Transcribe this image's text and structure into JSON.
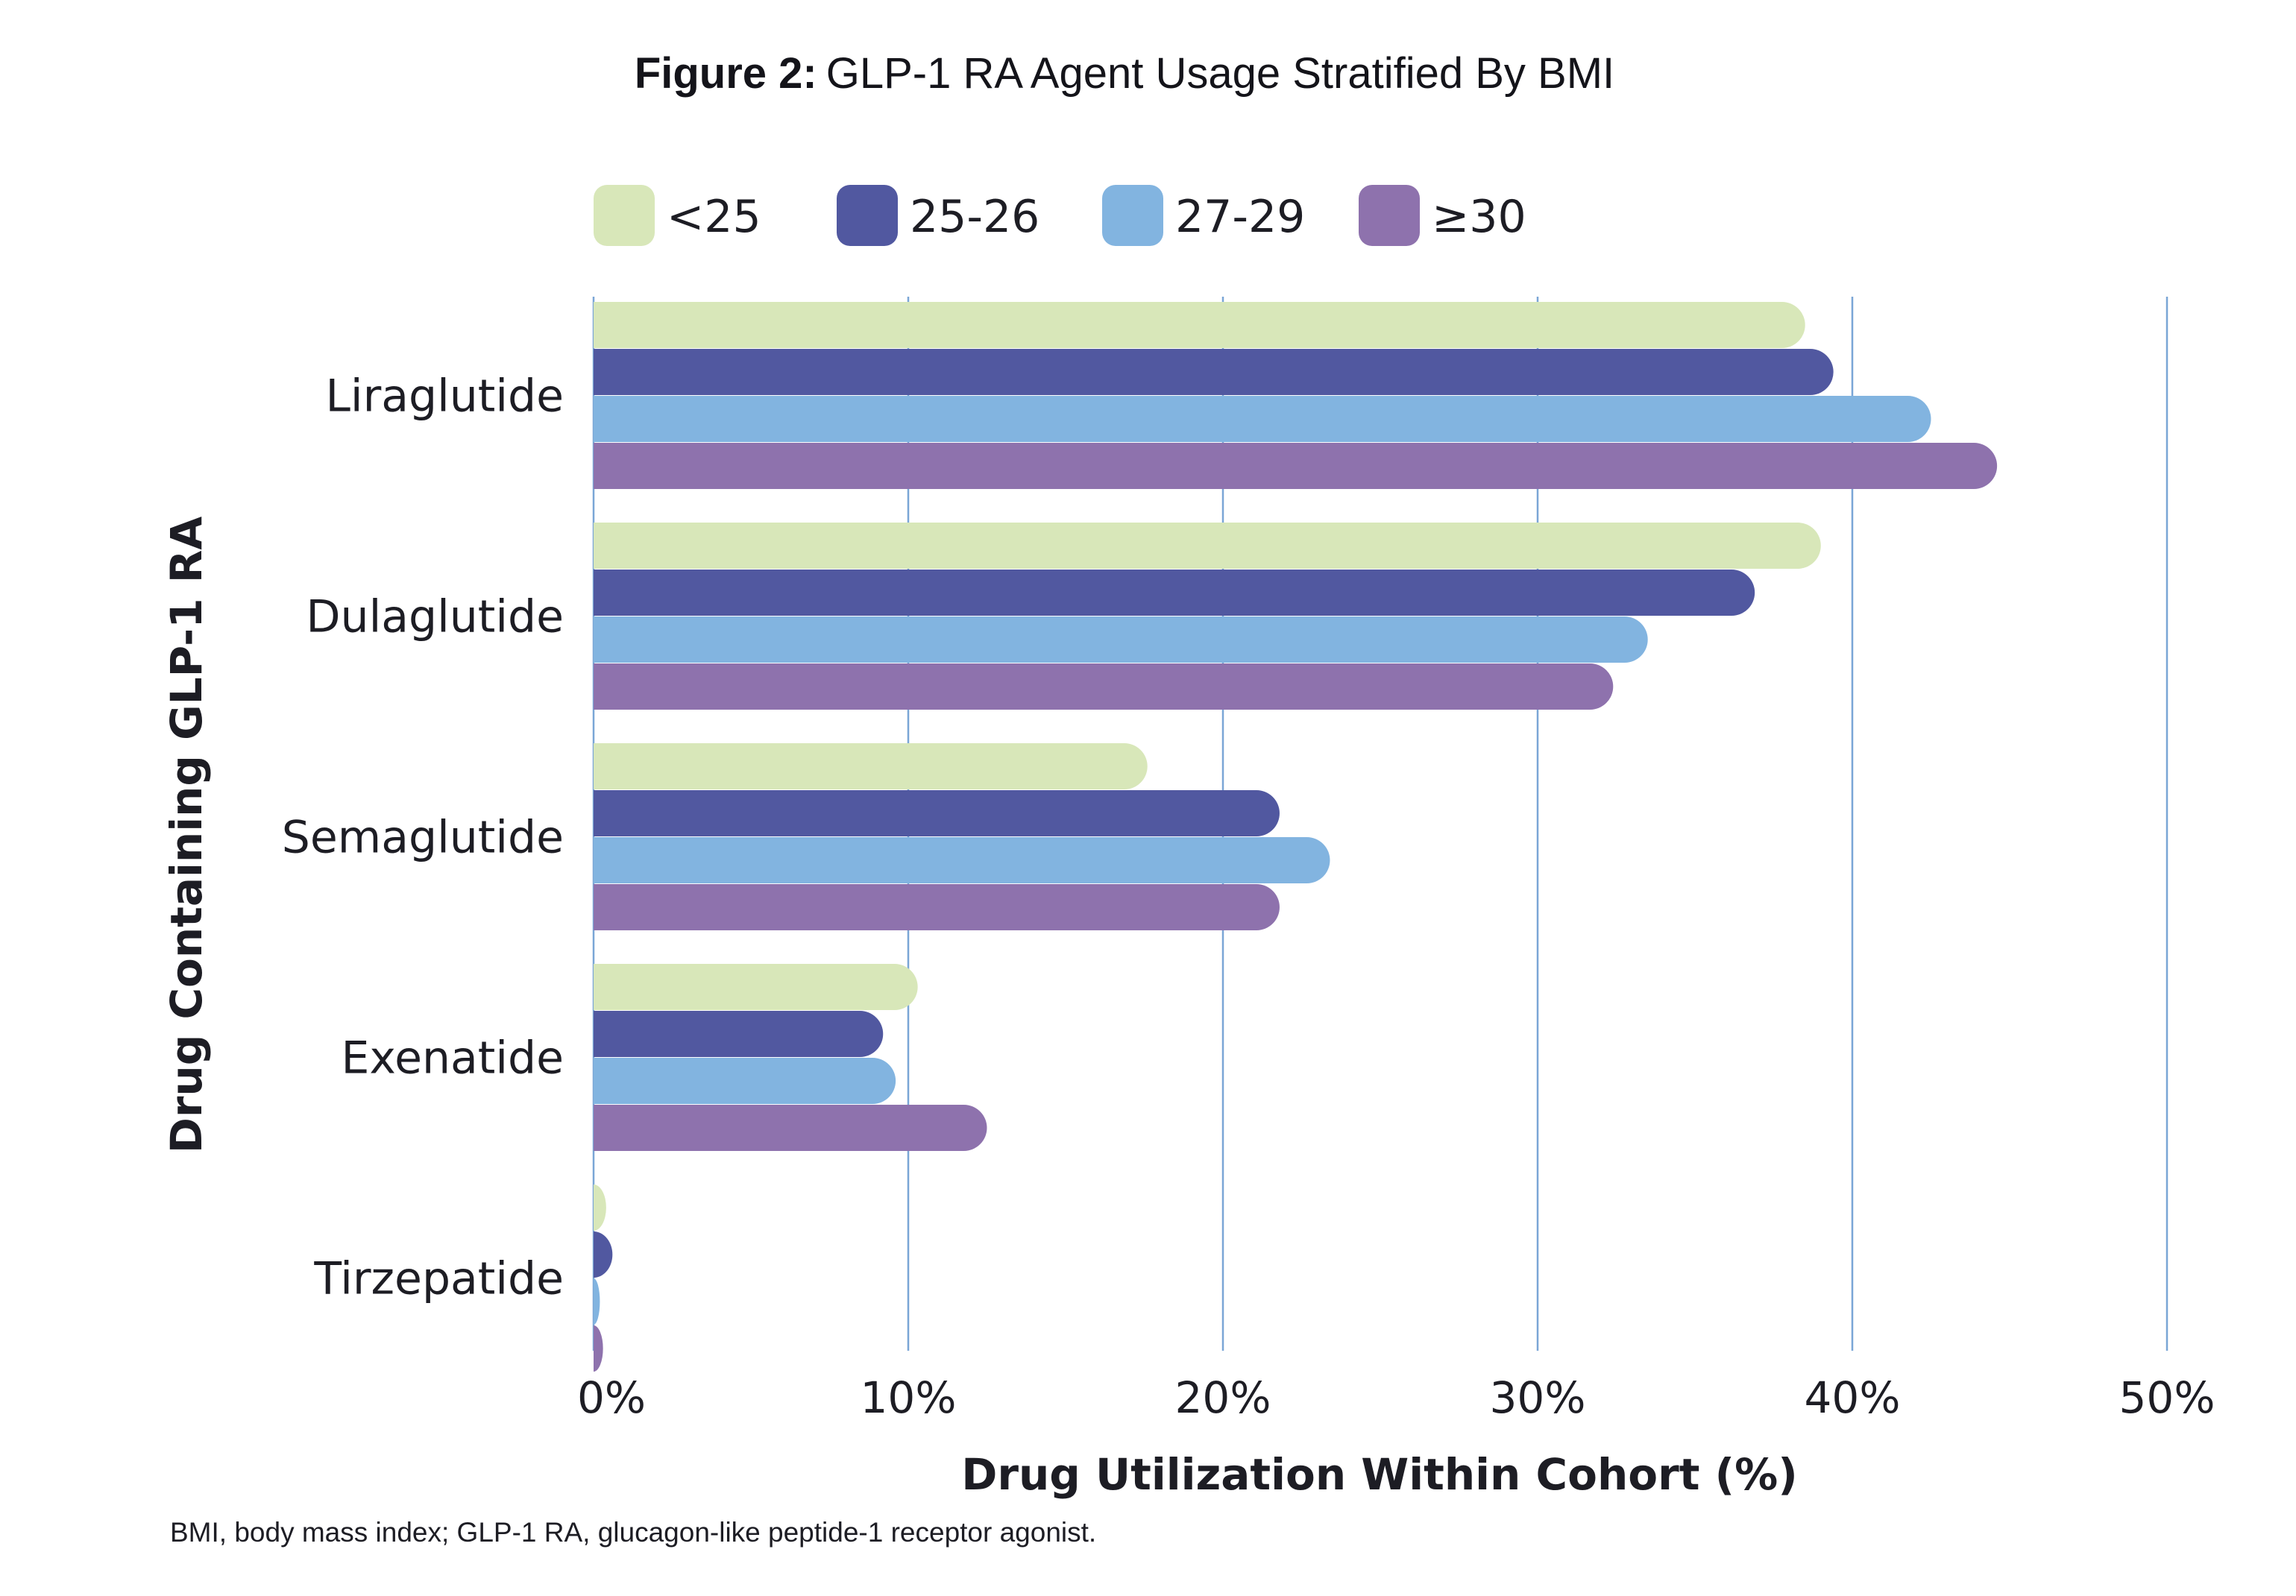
{
  "figure": {
    "title_bold": "Figure 2:",
    "title_rest": "GLP-1 RA Agent Usage Stratified By BMI",
    "footnote": "BMI, body mass index; GLP-1 RA, glucagon-like peptide-1 receptor agonist."
  },
  "chart_data": {
    "type": "bar",
    "orientation": "horizontal",
    "title": "GLP-1 RA Agent Usage Stratified By BMI",
    "xlabel": "Drug Utilization Within Cohort (%)",
    "ylabel": "Drug Containing GLP-1 RA",
    "xlim": [
      0,
      50
    ],
    "xticks": [
      0,
      10,
      20,
      30,
      40,
      50
    ],
    "xtick_labels": [
      "0%",
      "10%",
      "20%",
      "30%",
      "40%",
      "50%"
    ],
    "grid": "vertical",
    "legend_position": "top",
    "categories": [
      "Liraglutide",
      "Dulaglutide",
      "Semaglutide",
      "Exenatide",
      "Tirzepatide"
    ],
    "series": [
      {
        "name": "<25",
        "color": "#d8e7b9",
        "values": [
          38.5,
          39,
          17.6,
          10.3,
          0.4
        ]
      },
      {
        "name": "25-26",
        "color": "#5158a0",
        "values": [
          39.4,
          36.9,
          21.8,
          9.2,
          0.6
        ]
      },
      {
        "name": "27-29",
        "color": "#82b4e0",
        "values": [
          42.5,
          33.5,
          23.4,
          9.6,
          0.2
        ]
      },
      {
        "name": "≥30",
        "color": "#8e72ad",
        "values": [
          44.6,
          32.4,
          21.8,
          12.5,
          0.3
        ]
      }
    ]
  },
  "colors": {
    "gridline": "#7aa6d6",
    "text": "#1d1d24",
    "background": "#ffffff"
  }
}
